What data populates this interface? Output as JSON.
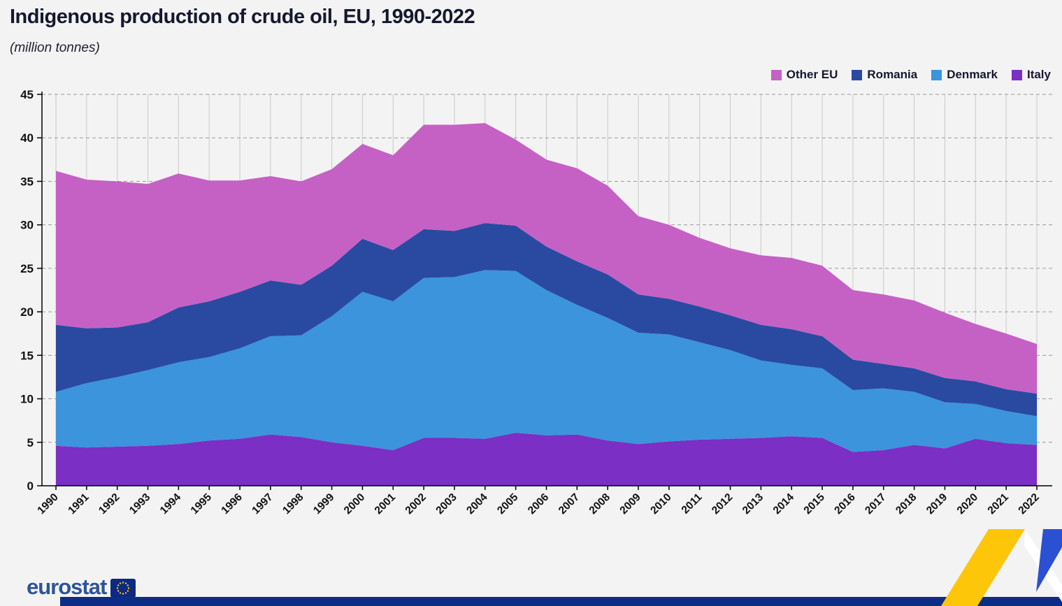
{
  "chart_data": {
    "type": "area",
    "stacked": true,
    "title": "Indigenous production of crude oil, EU, 1990-2022",
    "subtitle": "(million tonnes)",
    "xlabel": "",
    "ylabel": "",
    "ylim": [
      0,
      45
    ],
    "ytick_step": 5,
    "grid": true,
    "legend_position": "top-right",
    "x": [
      1990,
      1991,
      1992,
      1993,
      1994,
      1995,
      1996,
      1997,
      1998,
      1999,
      2000,
      2001,
      2002,
      2003,
      2004,
      2005,
      2006,
      2007,
      2008,
      2009,
      2010,
      2011,
      2012,
      2013,
      2014,
      2015,
      2016,
      2017,
      2018,
      2019,
      2020,
      2021,
      2022
    ],
    "series": [
      {
        "name": "Italy",
        "color": "#7b2fc4",
        "values": [
          4.6,
          4.4,
          4.5,
          4.6,
          4.8,
          5.2,
          5.4,
          5.9,
          5.6,
          5.0,
          4.6,
          4.1,
          5.5,
          5.5,
          5.4,
          6.1,
          5.8,
          5.9,
          5.2,
          4.8,
          5.1,
          5.3,
          5.4,
          5.5,
          5.7,
          5.5,
          3.9,
          4.1,
          4.7,
          4.3,
          5.4,
          4.9,
          4.7
        ]
      },
      {
        "name": "Denmark",
        "color": "#3b94dc",
        "values": [
          6.2,
          7.4,
          8.0,
          8.7,
          9.4,
          9.6,
          10.4,
          11.3,
          11.7,
          14.5,
          17.7,
          17.1,
          18.4,
          18.5,
          19.4,
          18.6,
          16.7,
          14.9,
          14.1,
          12.8,
          12.3,
          11.2,
          10.2,
          8.9,
          8.2,
          8.0,
          7.1,
          7.1,
          6.1,
          5.3,
          4.0,
          3.7,
          3.3
        ]
      },
      {
        "name": "Romania",
        "color": "#2a4aa2",
        "values": [
          7.7,
          6.3,
          5.7,
          5.5,
          6.3,
          6.4,
          6.5,
          6.4,
          5.8,
          5.8,
          6.1,
          5.9,
          5.6,
          5.3,
          5.4,
          5.2,
          5.0,
          5.0,
          5.0,
          4.4,
          4.1,
          4.1,
          4.0,
          4.1,
          4.1,
          3.7,
          3.5,
          2.8,
          2.7,
          2.8,
          2.6,
          2.5,
          2.6
        ]
      },
      {
        "name": "Other EU",
        "color": "#c561c4",
        "values": [
          17.7,
          17.1,
          16.8,
          15.9,
          15.4,
          13.9,
          12.8,
          12.0,
          11.9,
          11.1,
          10.9,
          10.9,
          12.0,
          12.2,
          11.5,
          9.9,
          10.0,
          10.7,
          10.2,
          9.0,
          8.5,
          7.9,
          7.7,
          8.0,
          8.2,
          8.1,
          8.0,
          8.0,
          7.8,
          7.5,
          6.6,
          6.4,
          5.7
        ]
      }
    ],
    "legend_order": [
      "Other EU",
      "Romania",
      "Denmark",
      "Italy"
    ]
  },
  "footer": {
    "logo_text": "eurostat"
  }
}
